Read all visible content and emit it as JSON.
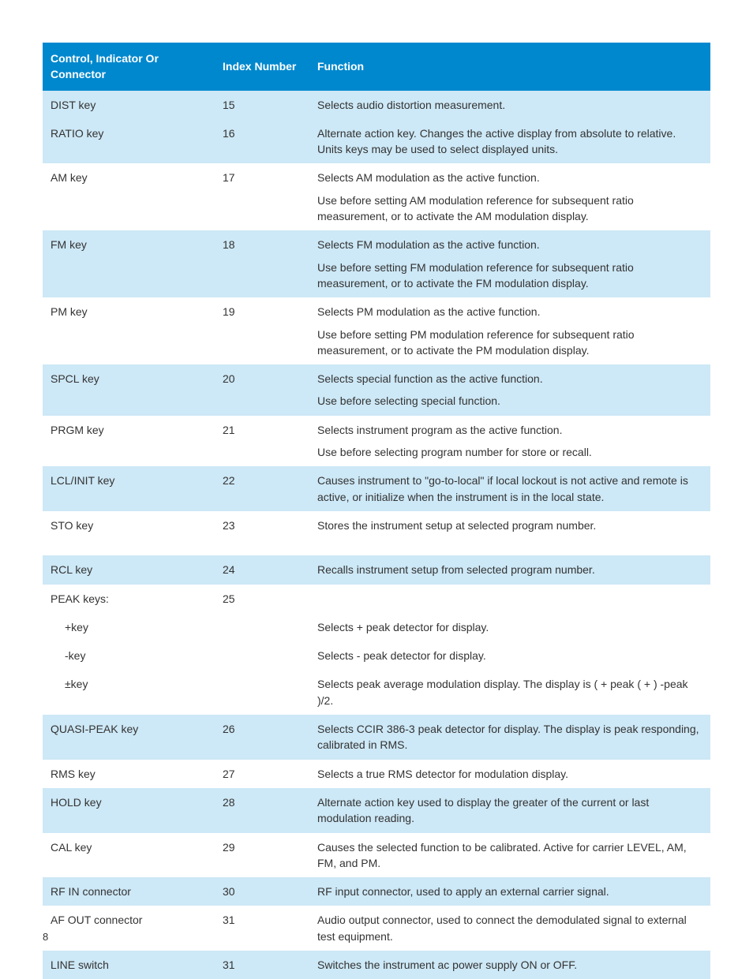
{
  "page_number": "8",
  "colors": {
    "header_bg": "#0088ce",
    "header_text": "#ffffff",
    "row_shaded": "#cde8f6",
    "row_plain": "#ffffff",
    "text": "#333333"
  },
  "table": {
    "columns": [
      "Control, Indicator Or Connector",
      "Index Number",
      "Function"
    ],
    "rows": [
      {
        "shade": true,
        "control": "DIST key",
        "index": "15",
        "func": [
          "Selects audio distortion measurement."
        ]
      },
      {
        "shade": true,
        "control": "RATIO key",
        "index": "16",
        "func": [
          "Alternate action key. Changes the active display from absolute to relative. Units keys may be used to select displayed units."
        ]
      },
      {
        "shade": false,
        "control": "AM key",
        "index": "17",
        "func": [
          "Selects AM modulation as the active function.",
          "Use before setting AM modulation reference for subsequent ratio measurement, or to activate the AM modulation display."
        ]
      },
      {
        "shade": true,
        "control": "FM key",
        "index": "18",
        "func": [
          "Selects FM modulation as the active function.",
          "Use before setting FM modulation reference for subsequent ratio measurement, or to activate the FM modulation display."
        ]
      },
      {
        "shade": false,
        "control": "PM key",
        "index": "19",
        "func": [
          "Selects PM modulation as the active function.",
          "Use before setting PM modulation reference for subsequent ratio measurement, or to activate the PM modulation display."
        ]
      },
      {
        "shade": true,
        "control": "SPCL key",
        "index": "20",
        "func": [
          "Selects special function as the active function.",
          "Use before selecting special function."
        ]
      },
      {
        "shade": false,
        "control": "PRGM key",
        "index": "21",
        "func": [
          "Selects instrument program as the active function.",
          "Use before selecting program number for store or recall."
        ]
      },
      {
        "shade": true,
        "control": "LCL/INIT key",
        "index": "22",
        "func": [
          "Causes instrument to \"go-to-local\" if local lockout is not active and remote is active, or initialize when the instrument is in the local state."
        ]
      },
      {
        "shade": false,
        "control": "STO key",
        "index": "23",
        "func": [
          "Stores the instrument setup at selected program number."
        ],
        "extra_bottom_pad": true
      },
      {
        "shade": true,
        "control": "RCL key",
        "index": "24",
        "func": [
          "Recalls instrument setup from selected program number."
        ]
      },
      {
        "shade": false,
        "control": "PEAK keys:",
        "index": "25",
        "func": [
          ""
        ]
      },
      {
        "shade": false,
        "control_indent": "+key",
        "index": "",
        "func": [
          "Selects + peak detector for display."
        ]
      },
      {
        "shade": false,
        "control_indent": "-key",
        "index": "",
        "func": [
          "Selects - peak detector for display."
        ]
      },
      {
        "shade": false,
        "control_indent": "±key",
        "index": "",
        "func": [
          "Selects peak average modulation display. The display is ( + peak ( + ) -peak )/2."
        ]
      },
      {
        "shade": true,
        "control": "QUASI-PEAK key",
        "index": "26",
        "func": [
          "Selects CCIR 386-3 peak detector for display. The display is peak responding, calibrated in RMS."
        ]
      },
      {
        "shade": false,
        "control": "RMS key",
        "index": "27",
        "func": [
          "Selects a true RMS detector for modulation display."
        ]
      },
      {
        "shade": true,
        "control": "HOLD key",
        "index": "28",
        "func": [
          "Alternate action key used to display the greater of the current or last modulation reading."
        ]
      },
      {
        "shade": false,
        "control": "CAL key",
        "index": "29",
        "func": [
          "Causes the selected function to be calibrated. Active for carrier LEVEL, AM, FM, and PM."
        ]
      },
      {
        "shade": true,
        "control": "RF IN connector",
        "index": "30",
        "func": [
          "RF input connector, used to apply an external carrier signal."
        ]
      },
      {
        "shade": false,
        "control": "AF OUT connector",
        "index": "31",
        "func": [
          "Audio output connector, used to connect the demodulated signal to external test equipment."
        ]
      },
      {
        "shade": true,
        "control": "LINE switch",
        "index": "31",
        "func": [
          "Switches the instrument ac power supply ON or OFF."
        ]
      }
    ]
  }
}
